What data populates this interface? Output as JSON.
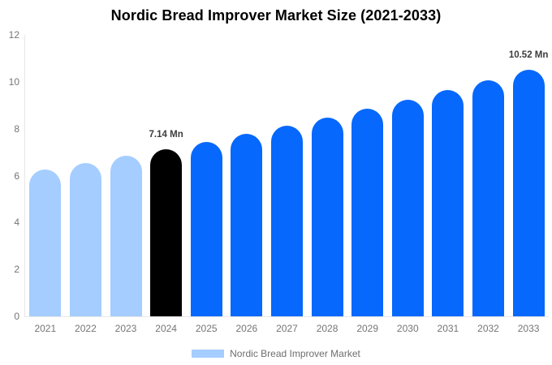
{
  "chart_data": {
    "type": "bar",
    "title": "Nordic Bread Improver Market Size (2021-2033)",
    "categories": [
      "2021",
      "2022",
      "2023",
      "2024",
      "2025",
      "2026",
      "2027",
      "2028",
      "2029",
      "2030",
      "2031",
      "2032",
      "2033"
    ],
    "values": [
      6.27,
      6.55,
      6.84,
      7.14,
      7.45,
      7.78,
      8.12,
      8.48,
      8.85,
      9.24,
      9.65,
      10.07,
      10.52
    ],
    "unit": "Mn",
    "bar_colors": [
      "#a5cdff",
      "#a5cdff",
      "#a5cdff",
      "#000000",
      "#0668fc",
      "#0668fc",
      "#0668fc",
      "#0668fc",
      "#0668fc",
      "#0668fc",
      "#0668fc",
      "#0668fc",
      "#0668fc"
    ],
    "data_labels": {
      "2024": "7.14 Mn",
      "2033": "10.52 Mn"
    },
    "y_ticks": [
      0,
      2,
      4,
      6,
      8,
      10,
      12
    ],
    "ylim": [
      0,
      12
    ],
    "grid": false,
    "legend": {
      "label": "Nordic Bread Improver Market",
      "swatch_color": "#a5cdff",
      "position": "bottom"
    },
    "axis_color": "#e7e7e7",
    "tick_label_color": "#757575",
    "annotation_color": "#3c3c3c"
  }
}
